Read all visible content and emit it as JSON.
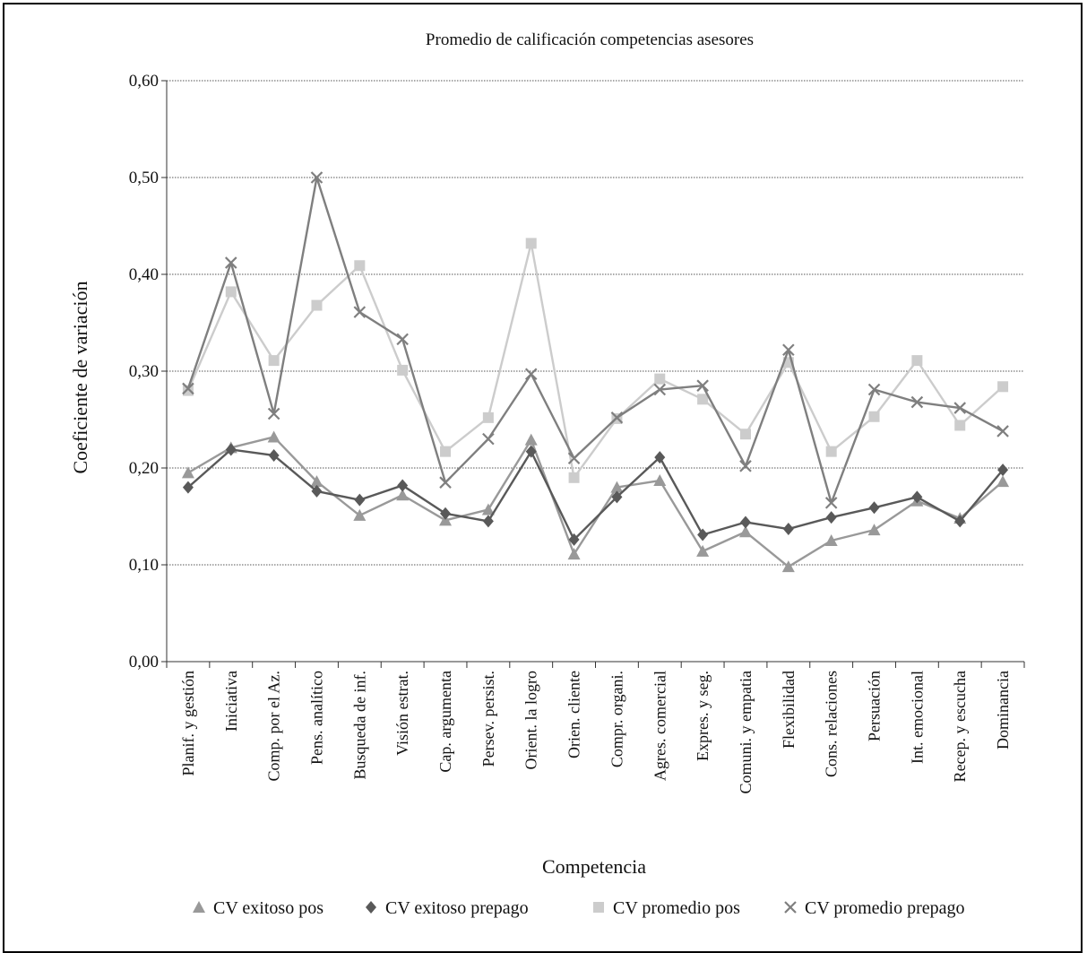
{
  "chart_data": {
    "type": "line",
    "title": "Promedio de calificación competencias asesores",
    "xlabel": "Competencia",
    "ylabel": "Coeficiente de variación",
    "ylim": [
      0,
      0.6
    ],
    "yticks": [
      "0,00",
      "0,10",
      "0,20",
      "0,30",
      "0,40",
      "0,50",
      "0,60"
    ],
    "grid": true,
    "legend_position": "bottom",
    "categories": [
      "Planif. y gestión",
      "Iniciativa",
      "Comp. por el Az.",
      "Pens. analítico",
      "Busqueda de inf.",
      "Visión estrat.",
      "Cap. argumenta",
      "Persev. persist.",
      "Orient. la logro",
      "Orien. cliente",
      "Compr. organi.",
      "Agres. comercial",
      "Expres. y seg.",
      "Comuni. y empatia",
      "Flexibilidad",
      "Cons. relaciones",
      "Persuación",
      "Int. emocional",
      "Recep. y escucha",
      "Dominancia"
    ],
    "series": [
      {
        "name": "CV exitoso pos",
        "marker": "triangle",
        "color": "#999999",
        "values": [
          0.195,
          0.221,
          0.232,
          0.186,
          0.151,
          0.172,
          0.146,
          0.157,
          0.229,
          0.111,
          0.18,
          0.187,
          0.114,
          0.134,
          0.098,
          0.125,
          0.136,
          0.166,
          0.148,
          0.186
        ]
      },
      {
        "name": "CV exitoso prepago",
        "marker": "diamond",
        "color": "#595959",
        "values": [
          0.18,
          0.219,
          0.213,
          0.176,
          0.167,
          0.182,
          0.153,
          0.145,
          0.217,
          0.126,
          0.17,
          0.211,
          0.131,
          0.144,
          0.137,
          0.149,
          0.159,
          0.17,
          0.145,
          0.198
        ]
      },
      {
        "name": "CV promedio pos",
        "marker": "square",
        "color": "#cccccc",
        "values": [
          0.28,
          0.382,
          0.311,
          0.368,
          0.409,
          0.301,
          0.217,
          0.252,
          0.432,
          0.19,
          0.251,
          0.292,
          0.271,
          0.235,
          0.309,
          0.217,
          0.253,
          0.311,
          0.244,
          0.284
        ]
      },
      {
        "name": "CV promedio prepago",
        "marker": "x",
        "color": "#7f7f7f",
        "values": [
          0.282,
          0.412,
          0.256,
          0.5,
          0.361,
          0.333,
          0.185,
          0.23,
          0.297,
          0.21,
          0.252,
          0.281,
          0.285,
          0.202,
          0.322,
          0.164,
          0.281,
          0.268,
          0.262,
          0.238
        ]
      }
    ]
  }
}
